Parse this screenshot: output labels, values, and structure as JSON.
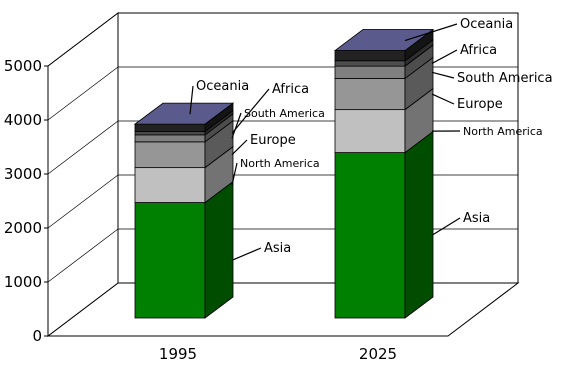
{
  "chart_data": {
    "type": "bar",
    "stacked": true,
    "three_d": true,
    "title": "",
    "xlabel": "",
    "ylabel": "",
    "categories": [
      "1995",
      "2025"
    ],
    "ylim": [
      0,
      5000
    ],
    "y_ticks": [
      "0",
      "1000",
      "2000",
      "3000",
      "4000",
      "5000"
    ],
    "grid": true,
    "legend": "none",
    "series": [
      {
        "name": "Asia",
        "values": [
          2150,
          3080
        ],
        "color": "#008000"
      },
      {
        "name": "North America",
        "values": [
          650,
          800
        ],
        "color": "#c0c0c0"
      },
      {
        "name": "Europe",
        "values": [
          480,
          580
        ],
        "color": "#969696"
      },
      {
        "name": "South America",
        "values": [
          130,
          230
        ],
        "color": "#808080"
      },
      {
        "name": "Africa",
        "values": [
          60,
          100
        ],
        "color": "#4d4d4d"
      },
      {
        "name": "Oceania",
        "values": [
          140,
          190
        ],
        "color": "#222222"
      }
    ],
    "top_color": "#5a5a8c",
    "series_labels": {
      "1995": [
        "Asia",
        "North America",
        "Europe",
        "South America",
        "Africa",
        "Oceania"
      ],
      "2025": [
        "Asia",
        "North America",
        "Europe",
        "South America",
        "Africa",
        "Oceania"
      ]
    }
  }
}
